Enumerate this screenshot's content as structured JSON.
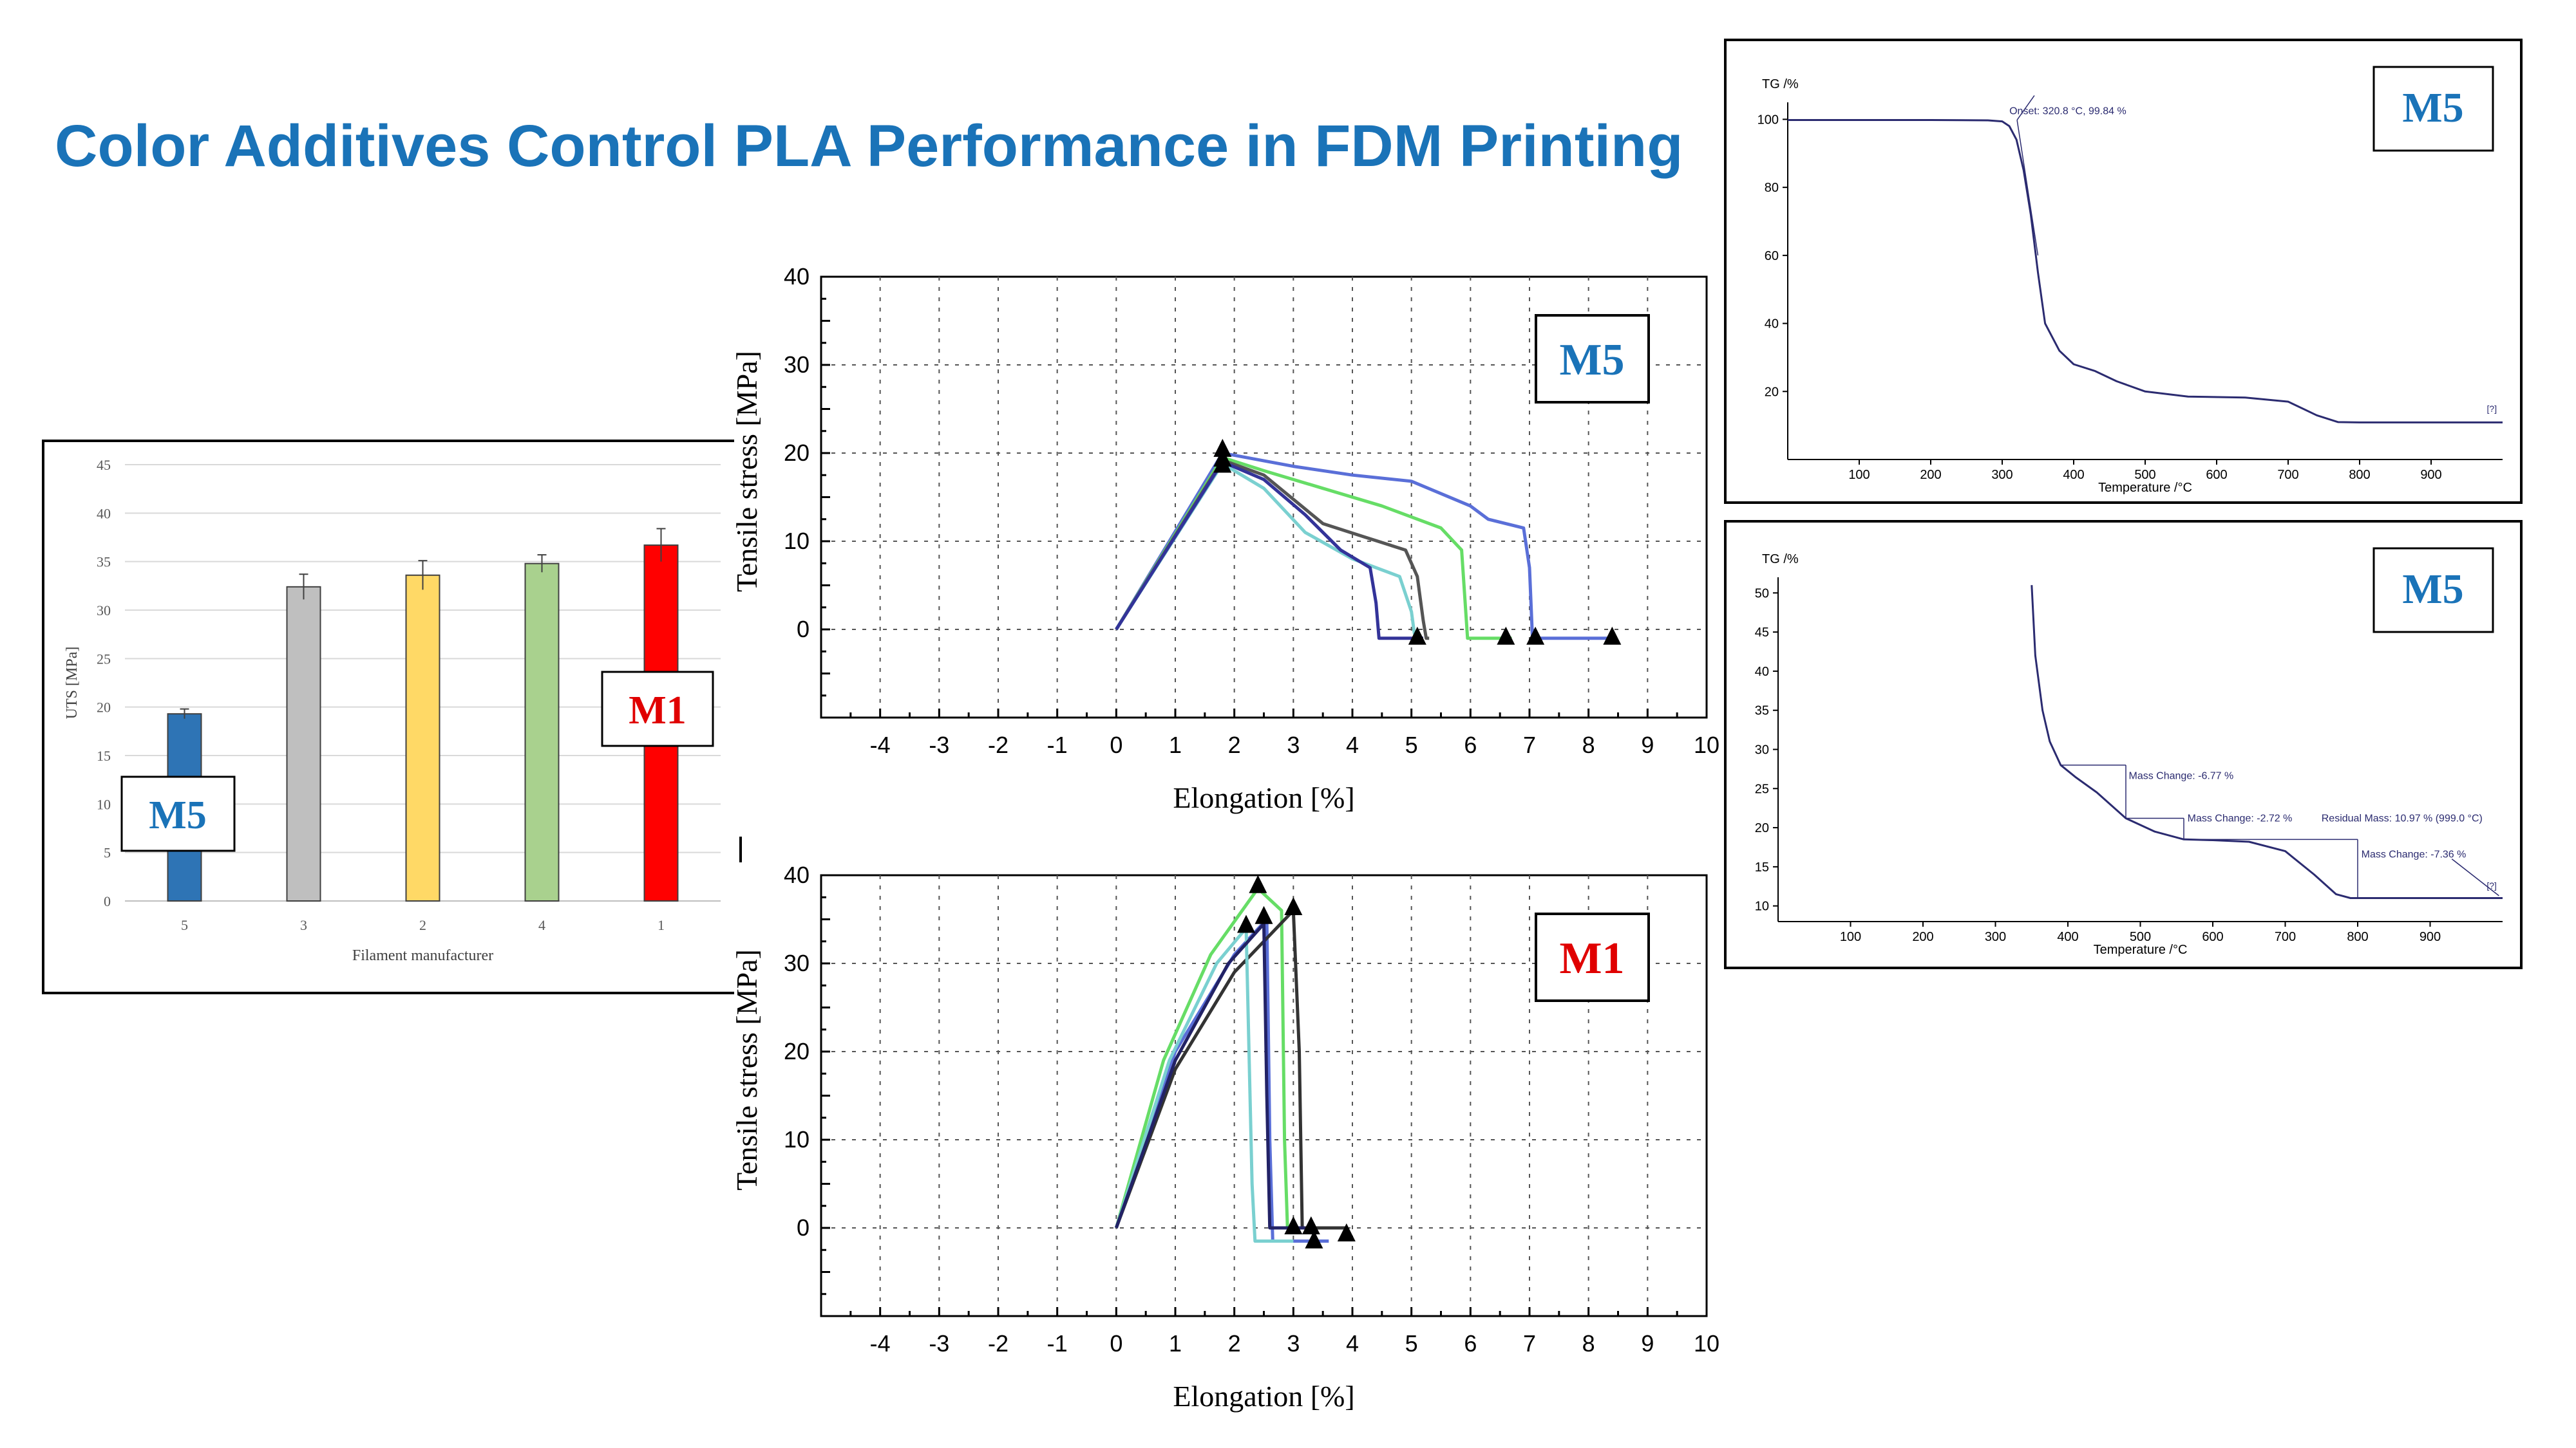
{
  "page": {
    "title": "Color Additives Control PLA Performance in FDM Printing",
    "accent_color": "#1a73b8",
    "m1_color": "#e00000"
  },
  "chart_data": [
    {
      "id": "uts_bar",
      "type": "bar",
      "title": "",
      "xlabel": "Filament manufacturer",
      "ylabel": "UTS [MPa]",
      "ylim": [
        0,
        45
      ],
      "yticks": [
        0,
        5,
        10,
        15,
        20,
        25,
        30,
        35,
        40,
        45
      ],
      "grid": true,
      "categories": [
        "5",
        "3",
        "2",
        "4",
        "1"
      ],
      "values": [
        19.3,
        32.4,
        33.6,
        34.8,
        36.7
      ],
      "errors": [
        0.5,
        1.3,
        1.5,
        0.9,
        1.7
      ],
      "colors": [
        "#2e74b5",
        "#bfbfbf",
        "#ffd966",
        "#a9d18e",
        "#ff0000"
      ],
      "annotations": [
        {
          "text": "M5",
          "color": "#1a73b8"
        },
        {
          "text": "M1",
          "color": "#e00000"
        }
      ]
    },
    {
      "id": "tensile_m5",
      "type": "line",
      "xlabel": "Elongation [%]",
      "ylabel": "Tensile stress [MPa]",
      "xlim": [
        -5,
        10
      ],
      "ylim": [
        -10,
        40
      ],
      "xticks": [
        -4,
        -3,
        -2,
        -1,
        0,
        1,
        2,
        3,
        4,
        5,
        6,
        7,
        8,
        9,
        10
      ],
      "yticks": [
        0,
        10,
        20,
        30,
        40
      ],
      "grid": true,
      "annotation": {
        "text": "M5",
        "color": "#1a73b8"
      },
      "series": [
        {
          "color": "#5a6fd8",
          "x": [
            0,
            1.8,
            3,
            4,
            5,
            6,
            6.3,
            6.9,
            7.0,
            7.05,
            8.4
          ],
          "y": [
            0,
            20,
            18.5,
            17.5,
            16.8,
            14,
            12.5,
            11.5,
            7,
            -1,
            -1
          ]
        },
        {
          "color": "#66dd66",
          "x": [
            0,
            1.8,
            2.5,
            3.5,
            4.5,
            5.5,
            5.85,
            5.9,
            5.95,
            6.7
          ],
          "y": [
            0,
            19.5,
            18,
            16,
            14,
            11.5,
            9,
            4,
            -1,
            -1
          ]
        },
        {
          "color": "#555555",
          "x": [
            0,
            1.8,
            2.5,
            3.5,
            4.2,
            4.9,
            5.1,
            5.2,
            5.25,
            5.3
          ],
          "y": [
            0,
            19.2,
            17.5,
            12,
            10.5,
            9,
            6,
            1,
            -1,
            -1
          ]
        },
        {
          "color": "#7ad0d0",
          "x": [
            0,
            1.8,
            2.5,
            3.2,
            4.0,
            4.8,
            5.0,
            5.05,
            5.1
          ],
          "y": [
            0,
            18.8,
            16,
            11,
            8,
            6,
            2,
            -0.5,
            -1
          ]
        },
        {
          "color": "#333399",
          "x": [
            0,
            1.8,
            2.5,
            3.2,
            3.8,
            4.3,
            4.4,
            4.45,
            5.2
          ],
          "y": [
            0,
            19.0,
            17,
            13,
            9,
            7,
            3,
            -1,
            -1
          ]
        }
      ],
      "markers": [
        {
          "x": 1.8,
          "y": 20.3
        },
        {
          "x": 1.8,
          "y": 19.2
        },
        {
          "x": 1.8,
          "y": 18.5
        },
        {
          "x": 5.1,
          "y": -1
        },
        {
          "x": 6.6,
          "y": -1
        },
        {
          "x": 7.1,
          "y": -1
        },
        {
          "x": 8.4,
          "y": -1
        }
      ]
    },
    {
      "id": "tensile_m1",
      "type": "line",
      "xlabel": "Elongation [%]",
      "ylabel": "Tensile stress [MPa]",
      "xlim": [
        -5,
        10
      ],
      "ylim": [
        -10,
        40
      ],
      "xticks": [
        -4,
        -3,
        -2,
        -1,
        0,
        1,
        2,
        3,
        4,
        5,
        6,
        7,
        8,
        9,
        10
      ],
      "yticks": [
        0,
        10,
        20,
        30,
        40
      ],
      "grid": true,
      "annotation": {
        "text": "M1",
        "color": "#e00000"
      },
      "series": [
        {
          "color": "#66dd66",
          "x": [
            0,
            0.8,
            1.6,
            2.4,
            2.8,
            2.85,
            2.9,
            3.3
          ],
          "y": [
            0,
            19,
            31,
            38.5,
            36,
            10,
            0,
            0
          ]
        },
        {
          "color": "#5a6fd8",
          "x": [
            0,
            1.0,
            2.0,
            2.55,
            2.6,
            2.65,
            3.6
          ],
          "y": [
            0,
            20,
            31,
            35,
            10,
            -1.5,
            -1.5
          ]
        },
        {
          "color": "#333333",
          "x": [
            0,
            1.0,
            2.0,
            3.0,
            3.1,
            3.15,
            3.9
          ],
          "y": [
            0,
            18,
            29,
            36,
            20,
            0,
            0
          ]
        },
        {
          "color": "#7ad0d0",
          "x": [
            0,
            0.9,
            1.7,
            2.2,
            2.3,
            2.35,
            3.0
          ],
          "y": [
            0,
            19,
            30,
            34,
            5,
            -1.5,
            -1.5
          ]
        },
        {
          "color": "#222266",
          "x": [
            0,
            1.0,
            1.9,
            2.5,
            2.55,
            2.6,
            3.2
          ],
          "y": [
            0,
            19,
            30,
            34.5,
            15,
            0,
            0
          ]
        }
      ],
      "markers": [
        {
          "x": 2.4,
          "y": 38.7
        },
        {
          "x": 2.5,
          "y": 35.2
        },
        {
          "x": 2.2,
          "y": 34.2
        },
        {
          "x": 3.0,
          "y": 36.2
        },
        {
          "x": 3.0,
          "y": 0
        },
        {
          "x": 3.3,
          "y": 0
        },
        {
          "x": 3.35,
          "y": -1.6
        },
        {
          "x": 3.9,
          "y": -0.8
        }
      ]
    },
    {
      "id": "tga_top",
      "type": "line",
      "ylabel": "TG /%",
      "xlabel": "Temperature /°C",
      "xlim": [
        0,
        1000
      ],
      "ylim": [
        0,
        105
      ],
      "xticks": [
        100,
        200,
        300,
        400,
        500,
        600,
        700,
        800,
        900
      ],
      "yticks": [
        20,
        40,
        60,
        80,
        100
      ],
      "grid": false,
      "annotation": {
        "text": "M5",
        "color": "#1a73b8"
      },
      "onset_label": "Onset: 320.8 °C, 99.84 %",
      "series": [
        {
          "color": "#2b2b70",
          "x": [
            0,
            100,
            200,
            280,
            300,
            310,
            320,
            330,
            340,
            350,
            360,
            380,
            400,
            430,
            460,
            500,
            560,
            640,
            700,
            740,
            770,
            800,
            900,
            1000
          ],
          "y": [
            99.8,
            99.8,
            99.8,
            99.7,
            99.4,
            98,
            94,
            85,
            72,
            55,
            40,
            32,
            28,
            26,
            23,
            20,
            18.5,
            18.2,
            17,
            13,
            11,
            10.9,
            10.9,
            10.9
          ]
        }
      ]
    },
    {
      "id": "tga_bottom",
      "type": "line",
      "ylabel": "TG /%",
      "xlabel": "Temperature /°C",
      "xlim": [
        0,
        1000
      ],
      "ylim": [
        8,
        52
      ],
      "xticks": [
        100,
        200,
        300,
        400,
        500,
        600,
        700,
        800,
        900
      ],
      "yticks": [
        10,
        15,
        20,
        25,
        30,
        35,
        40,
        45,
        50
      ],
      "grid": false,
      "annotation": {
        "text": "M5",
        "color": "#1a73b8"
      },
      "labels": [
        "Mass Change: -6.77 %",
        "Mass Change: -2.72 %",
        "Residual Mass: 10.97 % (999.0 °C)",
        "Mass Change: -7.36 %"
      ],
      "series": [
        {
          "color": "#2b2b70",
          "x": [
            350,
            355,
            365,
            375,
            390,
            410,
            440,
            480,
            520,
            560,
            600,
            650,
            700,
            740,
            770,
            790,
            800,
            900,
            1000
          ],
          "y": [
            51,
            42,
            35,
            31,
            28,
            26.5,
            24.5,
            21.2,
            19.5,
            18.5,
            18.4,
            18.2,
            17,
            14,
            11.5,
            11,
            11,
            11,
            11
          ]
        }
      ]
    }
  ]
}
